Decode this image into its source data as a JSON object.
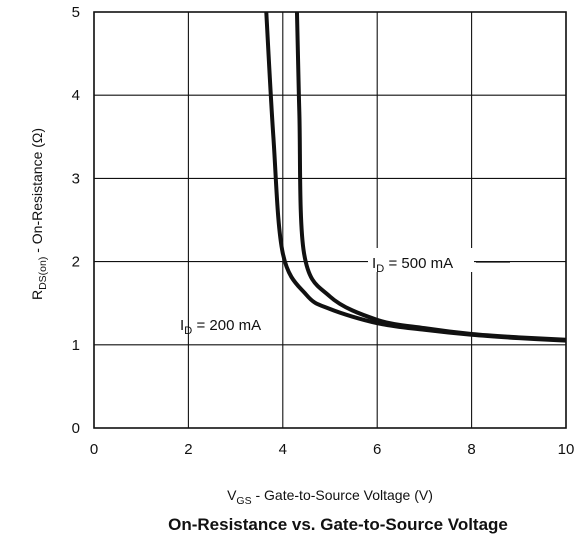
{
  "chart_data": {
    "type": "line",
    "title": "On-Resistance vs. Gate-to-Source Voltage",
    "xlabel": {
      "main": "V",
      "sub": "GS",
      "rest": " - Gate-to-Source Voltage (V)"
    },
    "ylabel": {
      "main": "R",
      "sub": "DS(on)",
      "rest": " - On-Resistance (Ω)"
    },
    "xlim": [
      0,
      10
    ],
    "ylim": [
      0,
      5
    ],
    "xticks": [
      "0",
      "2",
      "4",
      "6",
      "8",
      "10"
    ],
    "yticks": [
      "0",
      "1",
      "2",
      "3",
      "4",
      "5"
    ],
    "grid": true,
    "series": [
      {
        "label": {
          "main": "I",
          "sub": "D",
          "rest": " = 200 mA"
        },
        "x": [
          3.65,
          3.8,
          4.0,
          4.5,
          5.0,
          6.0,
          7.0,
          8.0,
          9.0,
          10.0
        ],
        "y": [
          5.0,
          3.5,
          2.1,
          1.6,
          1.43,
          1.26,
          1.18,
          1.12,
          1.08,
          1.05
        ]
      },
      {
        "label": {
          "main": "I",
          "sub": "D",
          "rest": " = 500 mA"
        },
        "x": [
          4.3,
          4.35,
          4.45,
          5.0,
          6.0,
          7.0,
          8.0,
          9.0,
          10.0
        ],
        "y": [
          5.0,
          3.8,
          2.1,
          1.58,
          1.3,
          1.2,
          1.13,
          1.09,
          1.06
        ]
      }
    ]
  }
}
